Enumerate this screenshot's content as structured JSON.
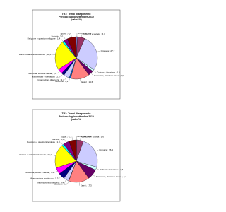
{
  "chart_data": [
    {
      "type": "pie",
      "title": [
        "TG1: Tempi di argomento",
        "Periodo: luglio-settembre 2010",
        "(valori %)"
      ],
      "value_labels": [
        "Ambiente ; 0,9",
        "Costume e società ; 5,7",
        "Cronaca ; 27,7",
        "Cultura e istruzione ; 1,6",
        "Economia, finanza e lavoro ; 3,9",
        "Esteri ; 14,6",
        "Giustizia ; 1,1",
        "Informazioni di servizio ; 4,4",
        "Mass media e spettacolo ; 2,3",
        "Medicina, salute e sanità ; 3,8",
        "Politica e attività istituzionali ; 22,6",
        "Religione e questioni religiose ; 1,4",
        "Società ; 3,0",
        "Sport ; 7,0"
      ],
      "values": [
        0.9,
        5.7,
        27.7,
        1.6,
        3.9,
        14.6,
        1.1,
        4.4,
        2.3,
        3.8,
        22.6,
        1.4,
        3.0,
        7.0
      ],
      "colors": [
        "#9999ff",
        "#993366",
        "#ccccff",
        "#ccffff",
        "#660066",
        "#ff8080",
        "#0066cc",
        "#ccccff",
        "#000080",
        "#ff00ff",
        "#ffff00",
        "#00ffff",
        "#800080",
        "#800000"
      ]
    },
    {
      "type": "pie",
      "title": [
        "TG2: Tempi di argomento",
        "Periodo: luglio-settembre 2010",
        "(valori%)"
      ],
      "value_labels": [
        "Ambiente ; 0,4",
        "Costume e società ; 5,6",
        "Cronaca ; 26,3",
        "Cultura e istruzione ; 2,6",
        "Economia, finanza e lavoro ; 8,7",
        "Esteri ; 17,3",
        "Giustizia ; 0,2",
        "Informazioni di servizio ; 4,4",
        "Mass media e spettacolo ; 5,3",
        "Medicina, salute e sanità ; 5,4",
        "Politica e attività istituzionali ; 20,1",
        "Religione e questioni religiose ; 1,8",
        "Società ; 5,0",
        "Sport ; 6,1"
      ],
      "values": [
        0.4,
        5.6,
        26.3,
        2.6,
        8.7,
        17.3,
        0.2,
        4.4,
        5.3,
        5.4,
        20.1,
        1.8,
        5.0,
        6.1
      ],
      "colors": [
        "#9999ff",
        "#993366",
        "#ccccff",
        "#ccffff",
        "#660066",
        "#ff8080",
        "#0066cc",
        "#ccccff",
        "#000080",
        "#ff00ff",
        "#ffff00",
        "#00ffff",
        "#800080",
        "#800000"
      ]
    }
  ]
}
